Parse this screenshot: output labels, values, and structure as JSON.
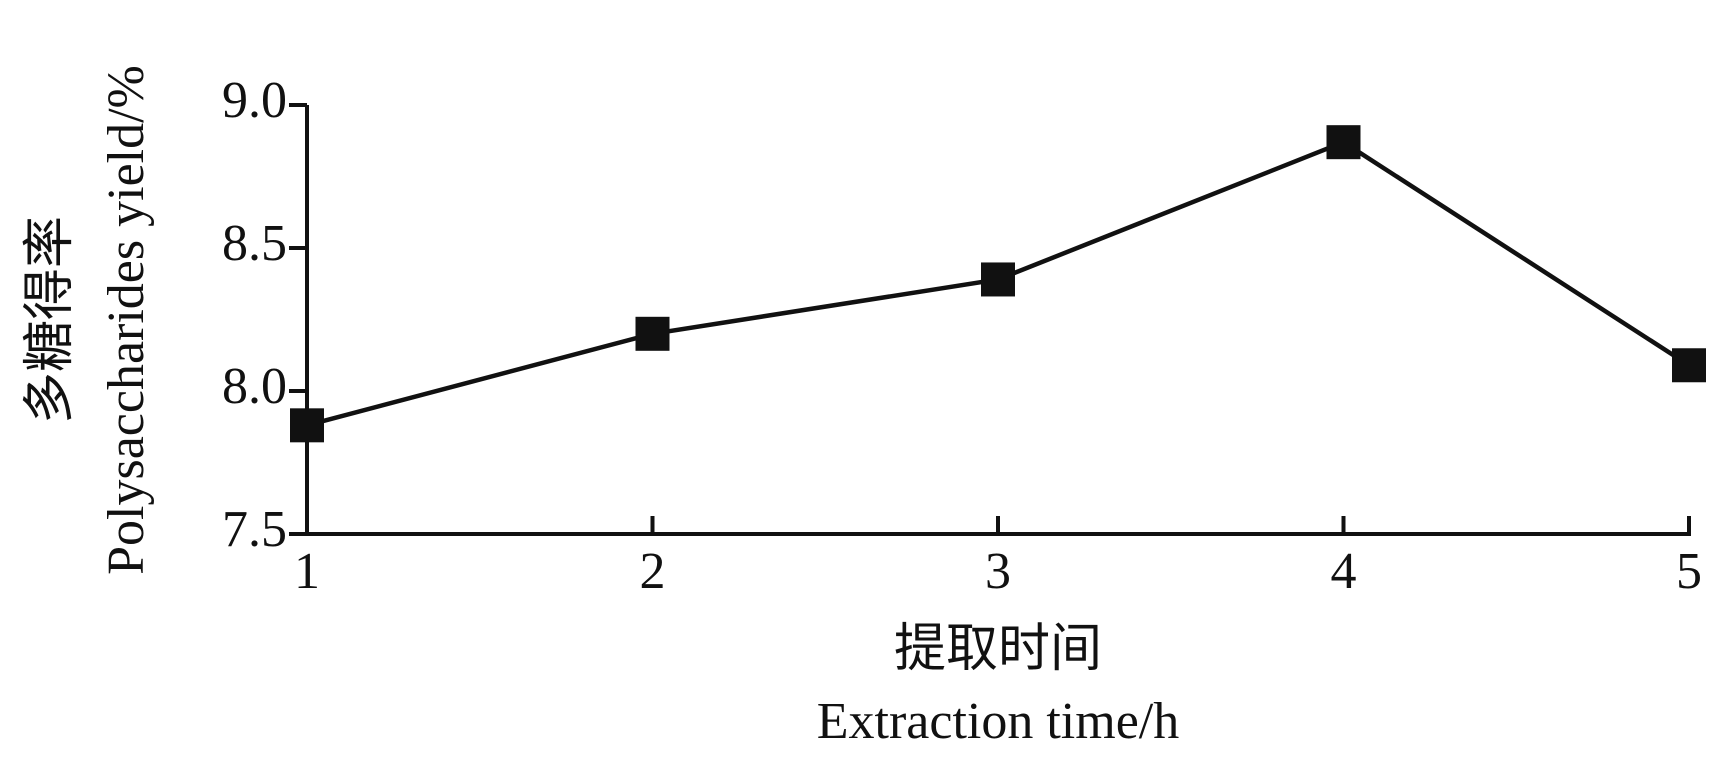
{
  "chart_data": {
    "type": "line",
    "y_label": [
      "多糖得率",
      "Polysaccharides yield/%"
    ],
    "x_label": [
      "提取时间",
      "Extraction time/h"
    ],
    "x": [
      1,
      2,
      3,
      4,
      5
    ],
    "values": [
      7.88,
      8.2,
      8.39,
      8.87,
      8.09
    ],
    "color": "#111111",
    "marker": "square",
    "xlim": [
      1,
      5
    ],
    "xticks": [
      1,
      2,
      3,
      4,
      5
    ],
    "ylim": [
      7.5,
      9
    ],
    "yticks": [
      {
        "value": 9,
        "label": "9.0"
      },
      8.5,
      {
        "value": 8,
        "label": "8.0"
      },
      7.5
    ],
    "grid": false
  }
}
